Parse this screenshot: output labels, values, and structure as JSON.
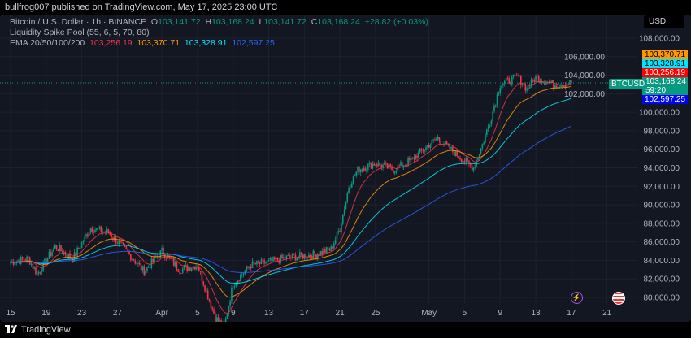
{
  "header": {
    "publisher": "bullfrog007 published on TradingView.com, May 17, 2025 23:00 UTC"
  },
  "legend": {
    "symbol": "Bitcoin / U.S. Dollar · 1h · BINANCE",
    "o_label": "O",
    "o": "103,141.72",
    "h_label": "H",
    "h": "103,168.24",
    "l_label": "L",
    "l": "103,141.72",
    "c_label": "C",
    "c": "103,168.24",
    "change": "+28.82 (+0.03%)",
    "indicator": "Liquidity Spike Pool (55, 6, 5, 70, 80)",
    "ema_label": "EMA 20/50/100/200",
    "ema20": "103,256.19",
    "ema50": "103,370.71",
    "ema100": "103,328.91",
    "ema200": "102,597.25"
  },
  "currency": "USD",
  "symbol_tag": "BTCUSD",
  "price_tags": {
    "ema50": "103,370.71",
    "ema100": "103,328.91",
    "ema20": "103,256.19",
    "last": "103,168.24",
    "countdown": "59:20",
    "ema200": "102,597.25"
  },
  "colors": {
    "up": "#089981",
    "down": "#f23645",
    "ema20": "#f23645",
    "ema50": "#ff9800",
    "ema100": "#00e5ff",
    "ema200": "#2962ff",
    "background": "#131722"
  },
  "footer": {
    "brand": "TradingView"
  },
  "chart_data": {
    "type": "candlestick",
    "ylim": [
      79000,
      109500
    ],
    "y_ticks": [
      "108,000.00",
      "106,000.00",
      "104,000.00",
      "102,000.00",
      "100,000.00",
      "98,000.00",
      "96,000.00",
      "94,000.00",
      "92,000.00",
      "90,000.00",
      "88,000.00",
      "86,000.00",
      "84,000.00",
      "82,000.00",
      "80,000.00"
    ],
    "x_ticks": [
      "15",
      "19",
      "23",
      "27",
      "Apr",
      "5",
      "9",
      "13",
      "17",
      "21",
      "25",
      "May",
      "5",
      "9",
      "13",
      "17",
      "21"
    ],
    "approx_daily_close": [
      [
        "Mar 15",
        83800
      ],
      [
        "Mar 17",
        84200
      ],
      [
        "Mar 18",
        82500
      ],
      [
        "Mar 20",
        85500
      ],
      [
        "Mar 22",
        84200
      ],
      [
        "Mar 24",
        87500
      ],
      [
        "Mar 26",
        87000
      ],
      [
        "Mar 28",
        85000
      ],
      [
        "Mar 30",
        82800
      ],
      [
        "Apr 1",
        85000
      ],
      [
        "Apr 3",
        83000
      ],
      [
        "Apr 5",
        83500
      ],
      [
        "Apr 7",
        77800
      ],
      [
        "Apr 8",
        76800
      ],
      [
        "Apr 9",
        81500
      ],
      [
        "Apr 11",
        83500
      ],
      [
        "Apr 13",
        83800
      ],
      [
        "Apr 15",
        84300
      ],
      [
        "Apr 18",
        84600
      ],
      [
        "Apr 20",
        85200
      ],
      [
        "Apr 21",
        87500
      ],
      [
        "Apr 22",
        92000
      ],
      [
        "Apr 23",
        93800
      ],
      [
        "Apr 25",
        94500
      ],
      [
        "Apr 27",
        93800
      ],
      [
        "Apr 29",
        94800
      ],
      [
        "May 1",
        96500
      ],
      [
        "May 2",
        97200
      ],
      [
        "May 4",
        95500
      ],
      [
        "May 6",
        94000
      ],
      [
        "May 7",
        96500
      ],
      [
        "May 8",
        99500
      ],
      [
        "May 9",
        103000
      ],
      [
        "May 11",
        103800
      ],
      [
        "May 12",
        102500
      ],
      [
        "May 13",
        103800
      ],
      [
        "May 15",
        103000
      ],
      [
        "May 17",
        103168
      ]
    ]
  }
}
